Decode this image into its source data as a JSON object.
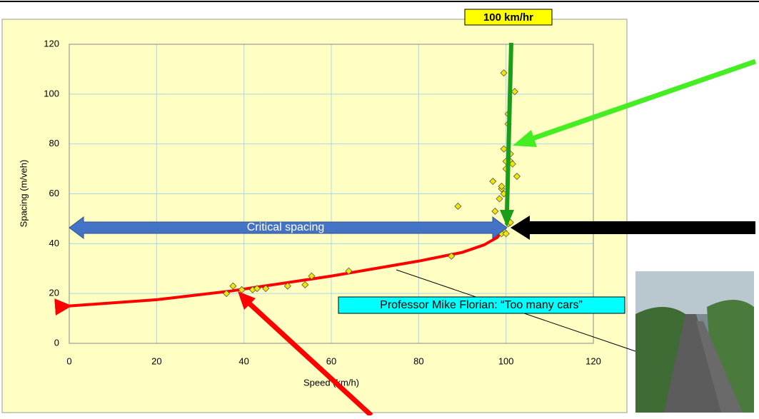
{
  "chart_data": {
    "type": "scatter",
    "xlabel": "Speed (km/h)",
    "ylabel": "Spacing (m/veh)",
    "xlim": [
      0,
      120
    ],
    "ylim": [
      0,
      120
    ],
    "xticks": [
      0,
      20,
      40,
      60,
      80,
      100,
      120
    ],
    "yticks": [
      0,
      20,
      40,
      60,
      80,
      100,
      120
    ],
    "grid": true,
    "color": "#f2e600",
    "x": [
      36,
      37.5,
      39.5,
      42,
      43,
      45,
      50,
      54,
      55.5,
      64,
      87.5,
      89,
      97,
      97.5,
      98.5,
      99,
      99,
      99.5,
      99.5,
      100,
      100,
      100.5,
      100.5,
      101,
      101,
      101.5,
      102.5,
      102,
      99.5,
      99.5,
      99,
      100,
      100.5,
      101
    ],
    "values": [
      20,
      23,
      21.5,
      21.5,
      22,
      22,
      23,
      23.5,
      27,
      29,
      35,
      55,
      65,
      53,
      58,
      62,
      63,
      60,
      78,
      73,
      70,
      92,
      88,
      76,
      73,
      72,
      67,
      101,
      108.5,
      45,
      44,
      44,
      48,
      48.5
    ],
    "curve": {
      "color": "#ff0000",
      "x": [
        0,
        20,
        37,
        60,
        80,
        90,
        95,
        98,
        99.5
      ],
      "values": [
        15,
        17.5,
        21,
        27,
        33,
        36.5,
        39.5,
        42.5,
        46
      ]
    },
    "annotations": {
      "speed_marker": "100 km/hr",
      "critical": "Critical spacing",
      "quote": "Professor Mike Florian: “Too many cars”"
    }
  }
}
